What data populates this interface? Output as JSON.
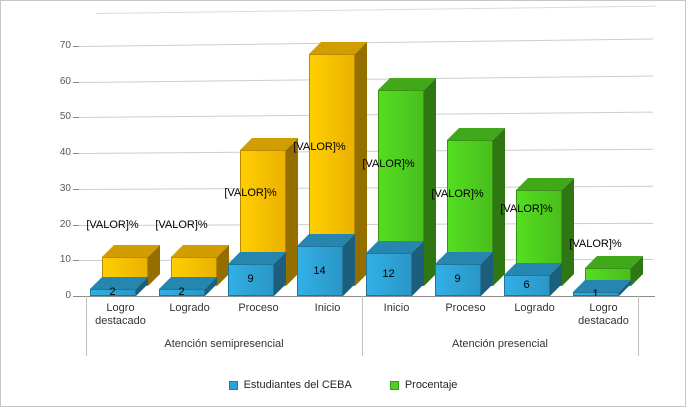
{
  "chart_data": {
    "type": "bar",
    "variant": "3d-clustered-column",
    "title": "",
    "categories": [
      "Logro destacado",
      "Logrado",
      "Proceso",
      "Inicio",
      "Inicio",
      "Proceso",
      "Logrado",
      "Logro destacado"
    ],
    "category_groups": [
      {
        "label": "Atención semipresencial",
        "start": 0,
        "end": 3
      },
      {
        "label": "Atención presencial",
        "start": 4,
        "end": 7
      }
    ],
    "series": [
      {
        "name": "Estudiantes del CEBA",
        "color": "#2EA3D6",
        "values": [
          2,
          2,
          9,
          14,
          12,
          9,
          6,
          1
        ],
        "data_labels": [
          "2",
          "2",
          "9",
          "14",
          "12",
          "9",
          "6",
          "1"
        ]
      },
      {
        "name": "Procentaje",
        "color": "#4FCE1F",
        "color_by_group": [
          "#FFC000",
          "#4FCE1F"
        ],
        "values_are_estimated_from_axis": true,
        "values": [
          8,
          8,
          38,
          65,
          55,
          41,
          27,
          5
        ],
        "data_labels": [
          "[VALOR]%",
          "[VALOR]%",
          "[VALOR]%",
          "[VALOR]%",
          "[VALOR]%",
          "[VALOR]%",
          "[VALOR]%",
          "[VALOR]%"
        ]
      }
    ],
    "ylim": [
      0,
      70
    ],
    "yticks": [
      "0",
      "10",
      "20",
      "30",
      "40",
      "50",
      "60",
      "70"
    ],
    "grid": true,
    "legend_position": "bottom",
    "layout_hints": {
      "percent_label_y": [
        218,
        218,
        186,
        140,
        157,
        187,
        202,
        237
      ]
    }
  },
  "legend": {
    "items": [
      {
        "label": "Estudiantes del CEBA",
        "color": "#2EA3D6"
      },
      {
        "label": "Procentaje",
        "color": "#4FCE1F"
      }
    ]
  }
}
